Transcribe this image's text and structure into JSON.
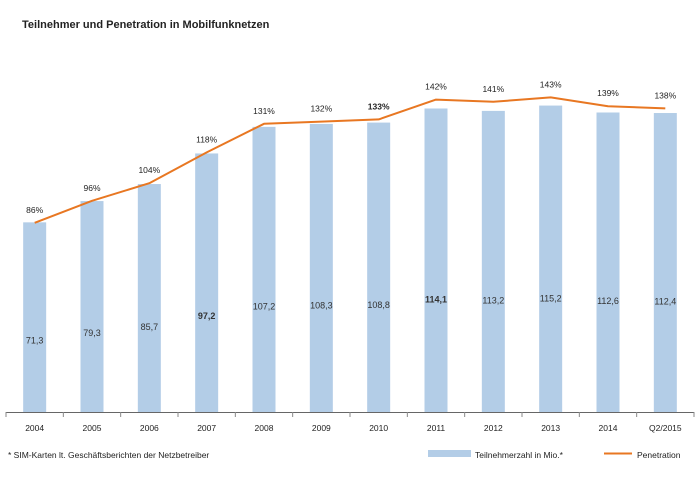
{
  "chart_data": {
    "type": "bar",
    "title": "Teilnehmer und Penetration in Mobilfunknetzen",
    "categories": [
      "2004",
      "2005",
      "2006",
      "2007",
      "2008",
      "2009",
      "2010",
      "2011",
      "2012",
      "2013",
      "2014",
      "Q2/2015"
    ],
    "series": [
      {
        "name": "Teilnehmerzahl in Mio.*",
        "type": "bar",
        "values": [
          71.3,
          79.3,
          85.7,
          97.2,
          107.2,
          108.3,
          108.8,
          114.1,
          113.2,
          115.2,
          112.6,
          112.4
        ],
        "labels": [
          "71,3",
          "79,3",
          "85,7",
          "97,2",
          "107,2",
          "108,3",
          "108,8",
          "114,1",
          "113,2",
          "115,2",
          "112,6",
          "112,4"
        ],
        "bold_labels": [
          "97,2",
          "114,1"
        ],
        "color": "#b3cde7"
      },
      {
        "name": "Penetration",
        "type": "line",
        "values": [
          86,
          96,
          104,
          118,
          131,
          132,
          133,
          142,
          141,
          143,
          139,
          138
        ],
        "labels": [
          "86%",
          "96%",
          "104%",
          "118%",
          "131%",
          "132%",
          "133%",
          "142%",
          "141%",
          "143%",
          "139%",
          "138%"
        ],
        "bold_labels": [
          "133%"
        ],
        "color": "#e87722"
      }
    ],
    "bar_ylim": [
      0,
      145
    ],
    "line_ylim": [
      0,
      180
    ],
    "footnote": "* SIM-Karten lt. Geschäftsberichten der Netzbetreiber",
    "legend_position": "bottom-right",
    "grid": false
  }
}
